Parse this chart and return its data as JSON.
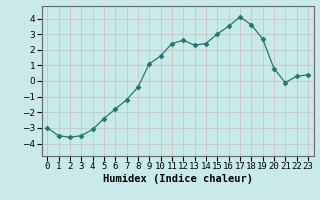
{
  "xlabel": "Humidex (Indice chaleur)",
  "x": [
    0,
    1,
    2,
    3,
    4,
    5,
    6,
    7,
    8,
    9,
    10,
    11,
    12,
    13,
    14,
    15,
    16,
    17,
    18,
    19,
    20,
    21,
    22,
    23
  ],
  "y": [
    -3.0,
    -3.5,
    -3.6,
    -3.5,
    -3.1,
    -2.4,
    -1.8,
    -1.2,
    -0.4,
    1.1,
    1.6,
    2.4,
    2.6,
    2.3,
    2.4,
    3.0,
    3.5,
    4.1,
    3.6,
    2.7,
    0.8,
    -0.1,
    0.3,
    0.4
  ],
  "line_color": "#1a7a6e",
  "marker": "D",
  "marker_size": 2.5,
  "bg_color": "#c8eaea",
  "grid_color": "#b8d8d8",
  "ylim": [
    -4.8,
    4.8
  ],
  "yticks": [
    -4,
    -3,
    -2,
    -1,
    0,
    1,
    2,
    3,
    4
  ],
  "xlim": [
    -0.5,
    23.5
  ],
  "xlabel_fontsize": 7.5,
  "tick_fontsize": 6.5
}
